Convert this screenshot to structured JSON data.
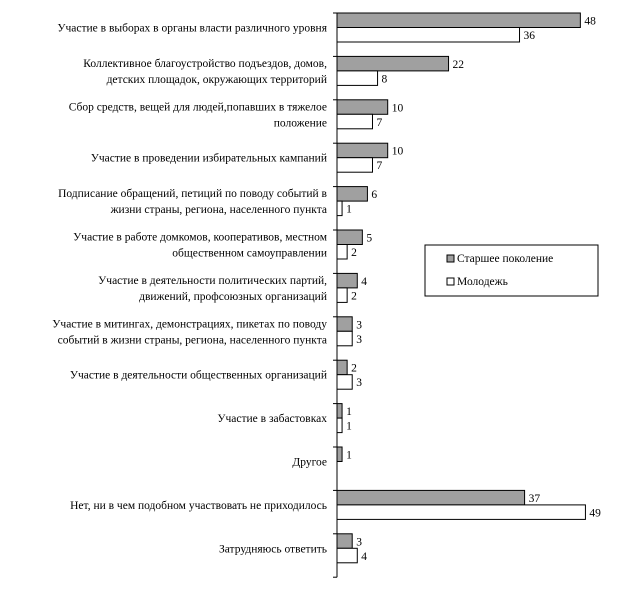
{
  "chart_data": {
    "type": "bar",
    "orientation": "horizontal",
    "categories": [
      [
        "Участие в выборах в органы власти различного уровня"
      ],
      [
        "Коллективное благоустройство подъездов, домов,",
        "детских площадок, окружающих территорий"
      ],
      [
        "Сбор средств, вещей для людей,попавших в тяжелое",
        "положение"
      ],
      [
        "Участие в проведении избирательных кампаний"
      ],
      [
        "Подписание обращений, петиций по поводу событий в",
        "жизни страны, региона, населенного пункта"
      ],
      [
        "Участие в работе домкомов, кооперативов, местном",
        "общественном самоуправлении"
      ],
      [
        "Участие в деятельности политических партий,",
        "движений, профсоюзных организаций"
      ],
      [
        "Участие в митингах, демонстрациях, пикетах по поводу",
        "событий в жизни страны, региона, населенного пункта"
      ],
      [
        "Участие в деятельности общественных организаций"
      ],
      [
        "Участие в забастовках"
      ],
      [
        "Другое"
      ],
      [
        "Нет, ни в чем подобном участвовать не приходилось"
      ],
      [
        "Затрудняюсь ответить"
      ]
    ],
    "series": [
      {
        "name": "Старшее поколение",
        "color": "#a0a0a0",
        "values": [
          48,
          22,
          10,
          10,
          6,
          5,
          4,
          3,
          2,
          1,
          1,
          37,
          3
        ]
      },
      {
        "name": "Молодежь",
        "color": "#ffffff",
        "values": [
          36,
          8,
          7,
          7,
          1,
          2,
          2,
          3,
          3,
          1,
          null,
          49,
          4
        ]
      }
    ],
    "xlim": [
      0,
      49
    ],
    "grid": false,
    "legend": "right",
    "data_labels": true
  }
}
